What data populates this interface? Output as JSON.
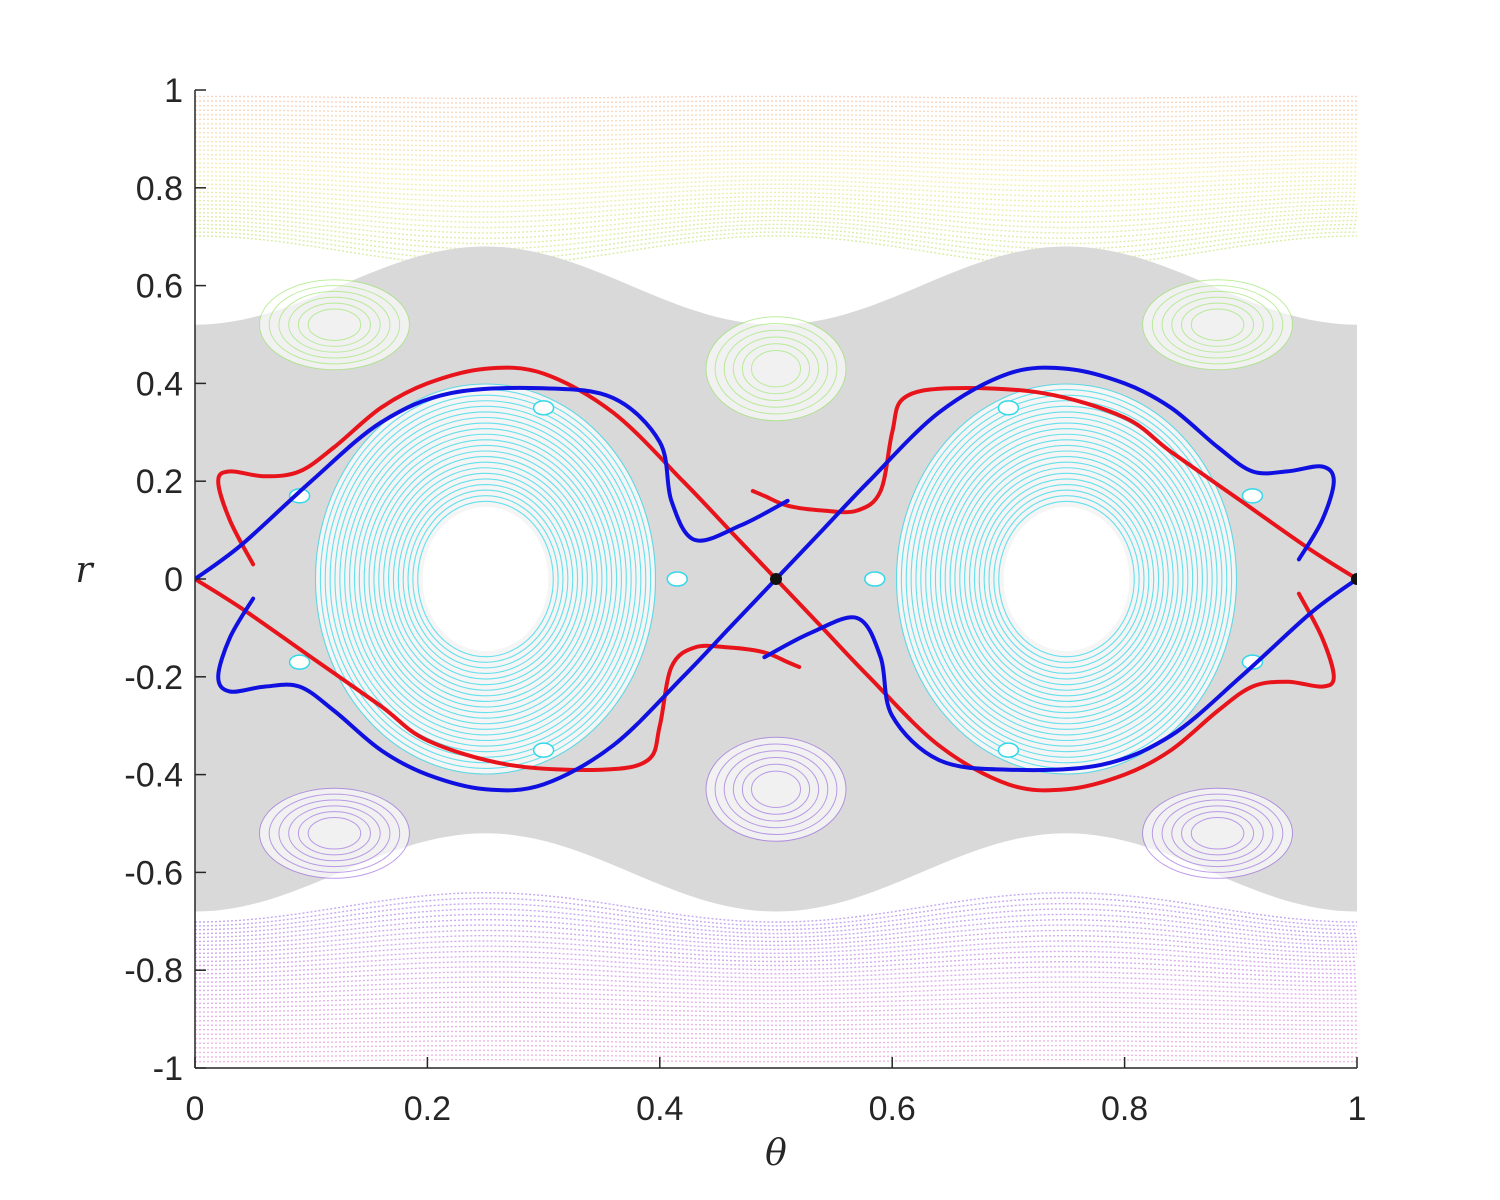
{
  "chart_data": {
    "type": "scatter",
    "title": "",
    "xlabel": "θ",
    "ylabel": "r",
    "xlim": [
      0,
      1
    ],
    "ylim": [
      -1,
      1
    ],
    "x_ticks": [
      0,
      0.2,
      0.4,
      0.6,
      0.8,
      1
    ],
    "x_tick_labels": [
      "0",
      "0.2",
      "0.4",
      "0.6",
      "0.8",
      "1"
    ],
    "y_ticks": [
      1,
      0.8,
      0.6,
      0.4,
      0.2,
      0,
      -0.2,
      -0.4,
      -0.6,
      -0.8,
      -1
    ],
    "y_tick_labels": [
      "1",
      "0.8",
      "0.6",
      "0.4",
      "0.2",
      "0",
      "-0.2",
      "-0.4",
      "-0.6",
      "-0.8",
      "-1"
    ],
    "grid": false,
    "legend": "none",
    "colors": {
      "stable_manifold": "#e8141c",
      "unstable_manifold": "#1010e0",
      "fixed_point": "#111111",
      "chaotic_sea": "#d9d9d9",
      "island_cyan": "#34d8e8",
      "island_green": "#9ae66a",
      "island_violet": "#9a6adf",
      "band_top": [
        "#f9c8b0",
        "#f2ec9a",
        "#cde88f"
      ],
      "band_bottom": [
        "#b595ec",
        "#d79be8",
        "#f0a8d8"
      ]
    },
    "fixed_points": [
      {
        "x": 0.5,
        "y": 0
      },
      {
        "x": 1.0,
        "y": 0
      }
    ],
    "series": [
      {
        "role": "red",
        "segments": [
          [
            [
              0.05,
              0.03
            ],
            [
              0.03,
              0.12
            ],
            [
              0.02,
              0.2
            ],
            [
              0.03,
              0.22
            ],
            [
              0.06,
              0.21
            ],
            [
              0.09,
              0.22
            ],
            [
              0.12,
              0.27
            ],
            [
              0.16,
              0.35
            ],
            [
              0.2,
              0.4
            ],
            [
              0.25,
              0.43
            ],
            [
              0.3,
              0.42
            ],
            [
              0.36,
              0.34
            ],
            [
              0.42,
              0.2
            ],
            [
              0.46,
              0.1
            ],
            [
              0.5,
              0
            ],
            [
              0.54,
              -0.1
            ],
            [
              0.58,
              -0.2
            ],
            [
              0.64,
              -0.34
            ],
            [
              0.7,
              -0.42
            ],
            [
              0.75,
              -0.43
            ],
            [
              0.8,
              -0.4
            ],
            [
              0.84,
              -0.35
            ],
            [
              0.88,
              -0.27
            ],
            [
              0.91,
              -0.22
            ],
            [
              0.94,
              -0.21
            ],
            [
              0.97,
              -0.22
            ],
            [
              0.98,
              -0.2
            ],
            [
              0.97,
              -0.12
            ],
            [
              0.95,
              -0.03
            ]
          ],
          [
            [
              0,
              0
            ],
            [
              0.04,
              -0.06
            ],
            [
              0.1,
              -0.16
            ],
            [
              0.16,
              -0.26
            ],
            [
              0.2,
              -0.33
            ],
            [
              0.27,
              -0.38
            ],
            [
              0.35,
              -0.39
            ],
            [
              0.39,
              -0.37
            ],
            [
              0.4,
              -0.3
            ],
            [
              0.41,
              -0.18
            ],
            [
              0.43,
              -0.14
            ],
            [
              0.46,
              -0.14
            ],
            [
              0.49,
              -0.15
            ],
            [
              0.51,
              -0.17
            ],
            [
              0.52,
              -0.18
            ]
          ],
          [
            [
              1,
              0
            ],
            [
              0.96,
              0.06
            ],
            [
              0.9,
              0.16
            ],
            [
              0.84,
              0.26
            ],
            [
              0.8,
              0.33
            ],
            [
              0.73,
              0.38
            ],
            [
              0.65,
              0.39
            ],
            [
              0.61,
              0.37
            ],
            [
              0.6,
              0.3
            ],
            [
              0.59,
              0.18
            ],
            [
              0.57,
              0.14
            ],
            [
              0.54,
              0.14
            ],
            [
              0.51,
              0.15
            ],
            [
              0.49,
              0.17
            ],
            [
              0.48,
              0.18
            ]
          ]
        ]
      },
      {
        "role": "blue",
        "segments": [
          [
            [
              0,
              0
            ],
            [
              0.04,
              0.07
            ],
            [
              0.1,
              0.2
            ],
            [
              0.16,
              0.32
            ],
            [
              0.22,
              0.38
            ],
            [
              0.3,
              0.39
            ],
            [
              0.36,
              0.37
            ],
            [
              0.4,
              0.28
            ],
            [
              0.41,
              0.16
            ],
            [
              0.43,
              0.08
            ],
            [
              0.47,
              0.11
            ],
            [
              0.51,
              0.16
            ]
          ],
          [
            [
              0.05,
              -0.04
            ],
            [
              0.03,
              -0.12
            ],
            [
              0.02,
              -0.2
            ],
            [
              0.03,
              -0.23
            ],
            [
              0.06,
              -0.22
            ],
            [
              0.09,
              -0.22
            ],
            [
              0.12,
              -0.27
            ],
            [
              0.16,
              -0.35
            ],
            [
              0.2,
              -0.4
            ],
            [
              0.25,
              -0.43
            ],
            [
              0.3,
              -0.42
            ],
            [
              0.36,
              -0.34
            ],
            [
              0.42,
              -0.2
            ],
            [
              0.46,
              -0.1
            ],
            [
              0.5,
              0
            ],
            [
              0.54,
              0.1
            ],
            [
              0.58,
              0.2
            ],
            [
              0.64,
              0.34
            ],
            [
              0.7,
              0.42
            ],
            [
              0.75,
              0.43
            ],
            [
              0.8,
              0.4
            ],
            [
              0.84,
              0.35
            ],
            [
              0.88,
              0.27
            ],
            [
              0.91,
              0.22
            ],
            [
              0.94,
              0.22
            ],
            [
              0.97,
              0.23
            ],
            [
              0.98,
              0.2
            ],
            [
              0.97,
              0.12
            ],
            [
              0.95,
              0.04
            ]
          ],
          [
            [
              1,
              0
            ],
            [
              0.96,
              -0.07
            ],
            [
              0.9,
              -0.2
            ],
            [
              0.84,
              -0.32
            ],
            [
              0.78,
              -0.38
            ],
            [
              0.7,
              -0.39
            ],
            [
              0.64,
              -0.37
            ],
            [
              0.6,
              -0.28
            ],
            [
              0.59,
              -0.16
            ],
            [
              0.57,
              -0.08
            ],
            [
              0.53,
              -0.11
            ],
            [
              0.49,
              -0.16
            ]
          ]
        ]
      }
    ]
  }
}
